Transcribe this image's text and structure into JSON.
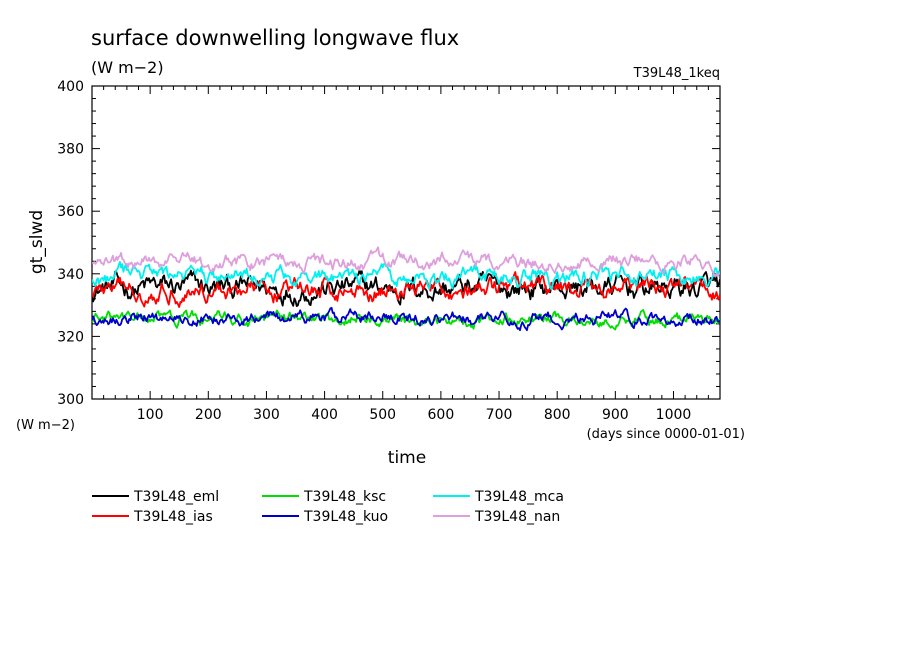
{
  "chart_data": {
    "type": "line",
    "title": "surface downwelling longwave flux",
    "units": "(W m−2)",
    "y_units": "(W m−2)",
    "run_label": "T39L48_1keq",
    "xlabel": "time",
    "xlabel_units": "(days since 0000-01-01)",
    "ylabel": "gt_slwd",
    "xlim": [
      0,
      1080
    ],
    "ylim": [
      300,
      400
    ],
    "x_ticks": [
      100,
      200,
      300,
      400,
      500,
      600,
      700,
      800,
      900,
      1000
    ],
    "y_ticks": [
      300,
      320,
      340,
      360,
      380,
      400
    ],
    "x_step": 2,
    "series": [
      {
        "name": "T39L48_eml",
        "color": "#000000",
        "mean": 335.5,
        "amplitude": 5.5
      },
      {
        "name": "T39L48_ias",
        "color": "#ff0000",
        "mean": 335.0,
        "amplitude": 4.5
      },
      {
        "name": "T39L48_ksc",
        "color": "#00dd00",
        "mean": 325.5,
        "amplitude": 3.0
      },
      {
        "name": "T39L48_kuo",
        "color": "#0000cc",
        "mean": 326.0,
        "amplitude": 3.0
      },
      {
        "name": "T39L48_mca",
        "color": "#00f0f0",
        "mean": 339.0,
        "amplitude": 4.0
      },
      {
        "name": "T39L48_nan",
        "color": "#dda0dd",
        "mean": 344.0,
        "amplitude": 3.5
      }
    ]
  }
}
